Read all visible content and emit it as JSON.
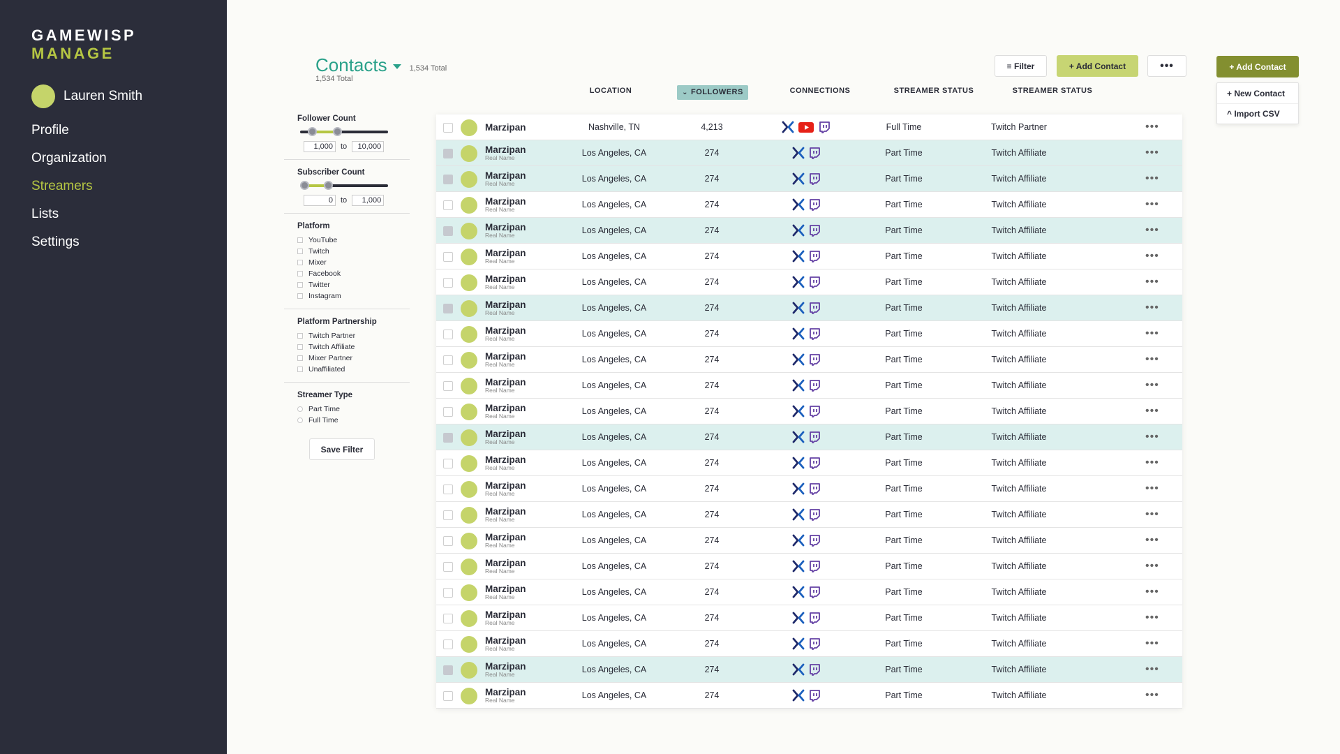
{
  "brand": {
    "line1": "GAMEWISP",
    "line2": "MANAGE"
  },
  "user": {
    "name": "Lauren Smith"
  },
  "nav": [
    "Profile",
    "Organization",
    "Streamers",
    "Lists",
    "Settings"
  ],
  "active_nav": "Streamers",
  "header": {
    "title": "Contacts",
    "total_inline": "1,534 Total",
    "total_sub": "1,534 Total",
    "filter_label": "≡ Filter",
    "add_label": "+ Add Contact",
    "more_label": "•••",
    "add_dark_label": "+ Add Contact",
    "dropdown": [
      "+ New Contact",
      "^ Import CSV"
    ]
  },
  "columns": {
    "location": "LOCATION",
    "followers": "FOLLOWERS",
    "connections": "CONNECTIONS",
    "streamer_status": "STREAMER STATUS",
    "streamer_status_2": "STREAMER STATUS"
  },
  "filters": {
    "follower_count": {
      "title": "Follower Count",
      "min": "1,000",
      "to": "to",
      "max": "10,000",
      "range_low": 0.1,
      "range_high": 0.42
    },
    "subscriber_count": {
      "title": "Subscriber Count",
      "min": "0",
      "to": "to",
      "max": "1,000",
      "range_low": 0.0,
      "range_high": 0.3
    },
    "platform": {
      "title": "Platform",
      "options": [
        "YouTube",
        "Twitch",
        "Mixer",
        "Facebook",
        "Twitter",
        "Instagram"
      ]
    },
    "partnership": {
      "title": "Platform Partnership",
      "options": [
        "Twitch Partner",
        "Twitch Affiliate",
        "Mixer Partner",
        "Unaffiliated"
      ]
    },
    "streamer_type": {
      "title": "Streamer Type",
      "options": [
        "Part Time",
        "Full Time"
      ]
    },
    "save_label": "Save Filter"
  },
  "rows": [
    {
      "name": "Marzipan",
      "real_name": "",
      "location": "Nashville, TN",
      "followers": "4,213",
      "status": "Full Time",
      "partnership": "Twitch Partner",
      "youtube": true,
      "highlight": false
    },
    {
      "name": "Marzipan",
      "real_name": "Real Name",
      "location": "Los Angeles, CA",
      "followers": "274",
      "status": "Part Time",
      "partnership": "Twitch Affiliate",
      "youtube": false,
      "highlight": true
    },
    {
      "name": "Marzipan",
      "real_name": "Real Name",
      "location": "Los Angeles, CA",
      "followers": "274",
      "status": "Part Time",
      "partnership": "Twitch Affiliate",
      "youtube": false,
      "highlight": true
    },
    {
      "name": "Marzipan",
      "real_name": "Real Name",
      "location": "Los Angeles, CA",
      "followers": "274",
      "status": "Part Time",
      "partnership": "Twitch Affiliate",
      "youtube": false,
      "highlight": false
    },
    {
      "name": "Marzipan",
      "real_name": "Real Name",
      "location": "Los Angeles, CA",
      "followers": "274",
      "status": "Part Time",
      "partnership": "Twitch Affiliate",
      "youtube": false,
      "highlight": true
    },
    {
      "name": "Marzipan",
      "real_name": "Real Name",
      "location": "Los Angeles, CA",
      "followers": "274",
      "status": "Part Time",
      "partnership": "Twitch Affiliate",
      "youtube": false,
      "highlight": false
    },
    {
      "name": "Marzipan",
      "real_name": "Real Name",
      "location": "Los Angeles, CA",
      "followers": "274",
      "status": "Part Time",
      "partnership": "Twitch Affiliate",
      "youtube": false,
      "highlight": false
    },
    {
      "name": "Marzipan",
      "real_name": "Real Name",
      "location": "Los Angeles, CA",
      "followers": "274",
      "status": "Part Time",
      "partnership": "Twitch Affiliate",
      "youtube": false,
      "highlight": true
    },
    {
      "name": "Marzipan",
      "real_name": "Real Name",
      "location": "Los Angeles, CA",
      "followers": "274",
      "status": "Part Time",
      "partnership": "Twitch Affiliate",
      "youtube": false,
      "highlight": false
    },
    {
      "name": "Marzipan",
      "real_name": "Real Name",
      "location": "Los Angeles, CA",
      "followers": "274",
      "status": "Part Time",
      "partnership": "Twitch Affiliate",
      "youtube": false,
      "highlight": false
    },
    {
      "name": "Marzipan",
      "real_name": "Real Name",
      "location": "Los Angeles, CA",
      "followers": "274",
      "status": "Part Time",
      "partnership": "Twitch Affiliate",
      "youtube": false,
      "highlight": false
    },
    {
      "name": "Marzipan",
      "real_name": "Real Name",
      "location": "Los Angeles, CA",
      "followers": "274",
      "status": "Part Time",
      "partnership": "Twitch Affiliate",
      "youtube": false,
      "highlight": false
    },
    {
      "name": "Marzipan",
      "real_name": "Real Name",
      "location": "Los Angeles, CA",
      "followers": "274",
      "status": "Part Time",
      "partnership": "Twitch Affiliate",
      "youtube": false,
      "highlight": true
    },
    {
      "name": "Marzipan",
      "real_name": "Real Name",
      "location": "Los Angeles, CA",
      "followers": "274",
      "status": "Part Time",
      "partnership": "Twitch Affiliate",
      "youtube": false,
      "highlight": false
    },
    {
      "name": "Marzipan",
      "real_name": "Real Name",
      "location": "Los Angeles, CA",
      "followers": "274",
      "status": "Part Time",
      "partnership": "Twitch Affiliate",
      "youtube": false,
      "highlight": false
    },
    {
      "name": "Marzipan",
      "real_name": "Real Name",
      "location": "Los Angeles, CA",
      "followers": "274",
      "status": "Part Time",
      "partnership": "Twitch Affiliate",
      "youtube": false,
      "highlight": false
    },
    {
      "name": "Marzipan",
      "real_name": "Real Name",
      "location": "Los Angeles, CA",
      "followers": "274",
      "status": "Part Time",
      "partnership": "Twitch Affiliate",
      "youtube": false,
      "highlight": false
    },
    {
      "name": "Marzipan",
      "real_name": "Real Name",
      "location": "Los Angeles, CA",
      "followers": "274",
      "status": "Part Time",
      "partnership": "Twitch Affiliate",
      "youtube": false,
      "highlight": false
    },
    {
      "name": "Marzipan",
      "real_name": "Real Name",
      "location": "Los Angeles, CA",
      "followers": "274",
      "status": "Part Time",
      "partnership": "Twitch Affiliate",
      "youtube": false,
      "highlight": false
    },
    {
      "name": "Marzipan",
      "real_name": "Real Name",
      "location": "Los Angeles, CA",
      "followers": "274",
      "status": "Part Time",
      "partnership": "Twitch Affiliate",
      "youtube": false,
      "highlight": false
    },
    {
      "name": "Marzipan",
      "real_name": "Real Name",
      "location": "Los Angeles, CA",
      "followers": "274",
      "status": "Part Time",
      "partnership": "Twitch Affiliate",
      "youtube": false,
      "highlight": false
    },
    {
      "name": "Marzipan",
      "real_name": "Real Name",
      "location": "Los Angeles, CA",
      "followers": "274",
      "status": "Part Time",
      "partnership": "Twitch Affiliate",
      "youtube": false,
      "highlight": true
    },
    {
      "name": "Marzipan",
      "real_name": "Real Name",
      "location": "Los Angeles, CA",
      "followers": "274",
      "status": "Part Time",
      "partnership": "Twitch Affiliate",
      "youtube": false,
      "highlight": false
    }
  ],
  "row_more_label": "•••",
  "icons": {
    "mixer": "mixer-icon",
    "youtube": "youtube-icon",
    "twitch": "twitch-icon"
  },
  "colors": {
    "accent": "#2aa18a",
    "lime": "#b5c643",
    "sidebar": "#2b2d3a",
    "highlight": "#dcf0ee",
    "add_dark": "#838f30",
    "mixer": "#1b5fbd",
    "youtube": "#e62117",
    "twitch": "#6441a4"
  }
}
